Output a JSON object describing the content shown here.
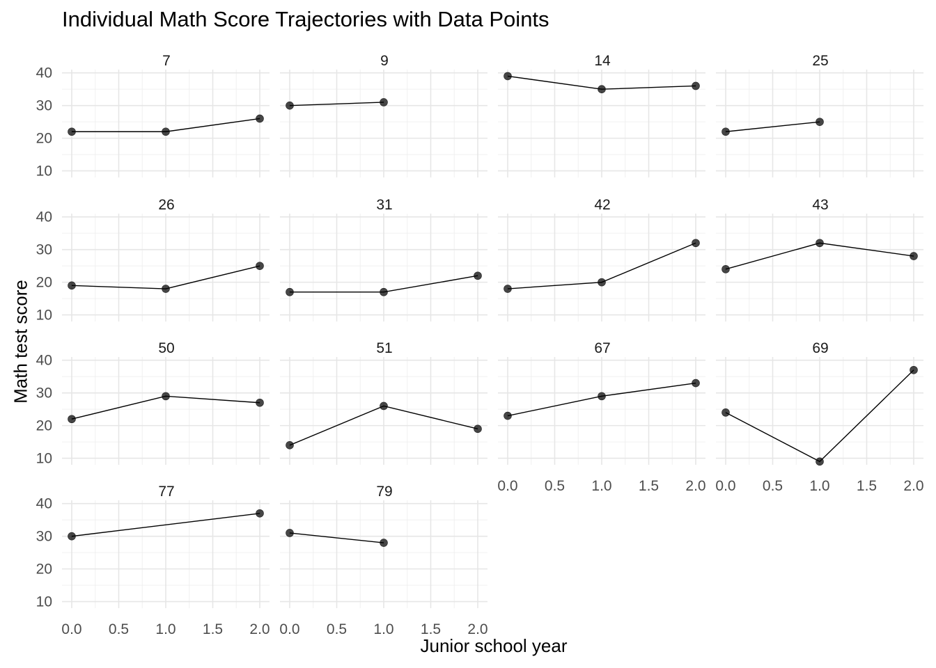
{
  "chart_data": {
    "type": "line",
    "title": "Individual Math Score Trajectories with Data Points",
    "xlabel": "Junior school year",
    "ylabel": "Math test score",
    "xlim": [
      0,
      2
    ],
    "ylim": [
      8,
      41
    ],
    "x_ticks": [
      "0.0",
      "0.5",
      "1.0",
      "1.5",
      "2.0"
    ],
    "y_ticks": [
      "10",
      "20",
      "30",
      "40"
    ],
    "grid": true,
    "facets": [
      {
        "label": "7",
        "x": [
          0,
          1,
          2
        ],
        "y": [
          22,
          22,
          26
        ]
      },
      {
        "label": "9",
        "x": [
          0,
          1
        ],
        "y": [
          30,
          31
        ]
      },
      {
        "label": "14",
        "x": [
          0,
          1,
          2
        ],
        "y": [
          39,
          35,
          36
        ]
      },
      {
        "label": "25",
        "x": [
          0,
          1
        ],
        "y": [
          22,
          25
        ]
      },
      {
        "label": "26",
        "x": [
          0,
          1,
          2
        ],
        "y": [
          19,
          18,
          25
        ]
      },
      {
        "label": "31",
        "x": [
          0,
          1,
          2
        ],
        "y": [
          17,
          17,
          22
        ]
      },
      {
        "label": "42",
        "x": [
          0,
          1,
          2
        ],
        "y": [
          18,
          20,
          32
        ]
      },
      {
        "label": "43",
        "x": [
          0,
          1,
          2
        ],
        "y": [
          24,
          32,
          28
        ]
      },
      {
        "label": "50",
        "x": [
          0,
          1,
          2
        ],
        "y": [
          22,
          29,
          27
        ]
      },
      {
        "label": "51",
        "x": [
          0,
          1,
          2
        ],
        "y": [
          14,
          26,
          19
        ]
      },
      {
        "label": "67",
        "x": [
          0,
          1,
          2
        ],
        "y": [
          23,
          29,
          33
        ]
      },
      {
        "label": "69",
        "x": [
          0,
          1,
          2
        ],
        "y": [
          24,
          9,
          37
        ]
      },
      {
        "label": "77",
        "x": [
          0,
          2
        ],
        "y": [
          30,
          37
        ]
      },
      {
        "label": "79",
        "x": [
          0,
          1
        ],
        "y": [
          31,
          28
        ]
      }
    ]
  }
}
